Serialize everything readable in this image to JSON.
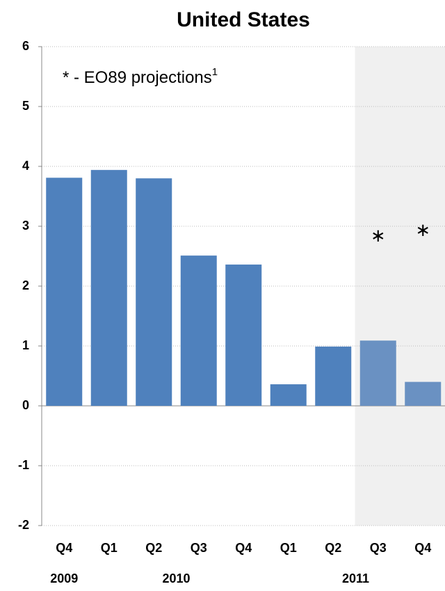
{
  "chart_data": {
    "type": "bar",
    "title": "United States",
    "annotation": "* - EO89 projections",
    "annotation_footnote": "1",
    "categories": [
      "Q4",
      "Q1",
      "Q2",
      "Q3",
      "Q4",
      "Q1",
      "Q2",
      "Q3",
      "Q4"
    ],
    "groups": [
      {
        "label": "2009",
        "span": 1
      },
      {
        "label": "2010",
        "span": 4
      },
      {
        "label": "2011",
        "span": 4
      }
    ],
    "values": [
      3.81,
      3.94,
      3.8,
      2.51,
      2.36,
      0.36,
      0.99,
      1.09,
      0.4
    ],
    "projections": [
      null,
      null,
      null,
      null,
      null,
      null,
      null,
      2.86,
      2.95
    ],
    "color": "#4f81bd",
    "projection_color": "#6a91c2",
    "projection_start": 7,
    "projection_shade": "#f0f0f0",
    "ylim": [
      -2,
      6
    ],
    "yticks": [
      -2,
      -1,
      0,
      1,
      2,
      3,
      4,
      5,
      6
    ],
    "grid": true
  }
}
